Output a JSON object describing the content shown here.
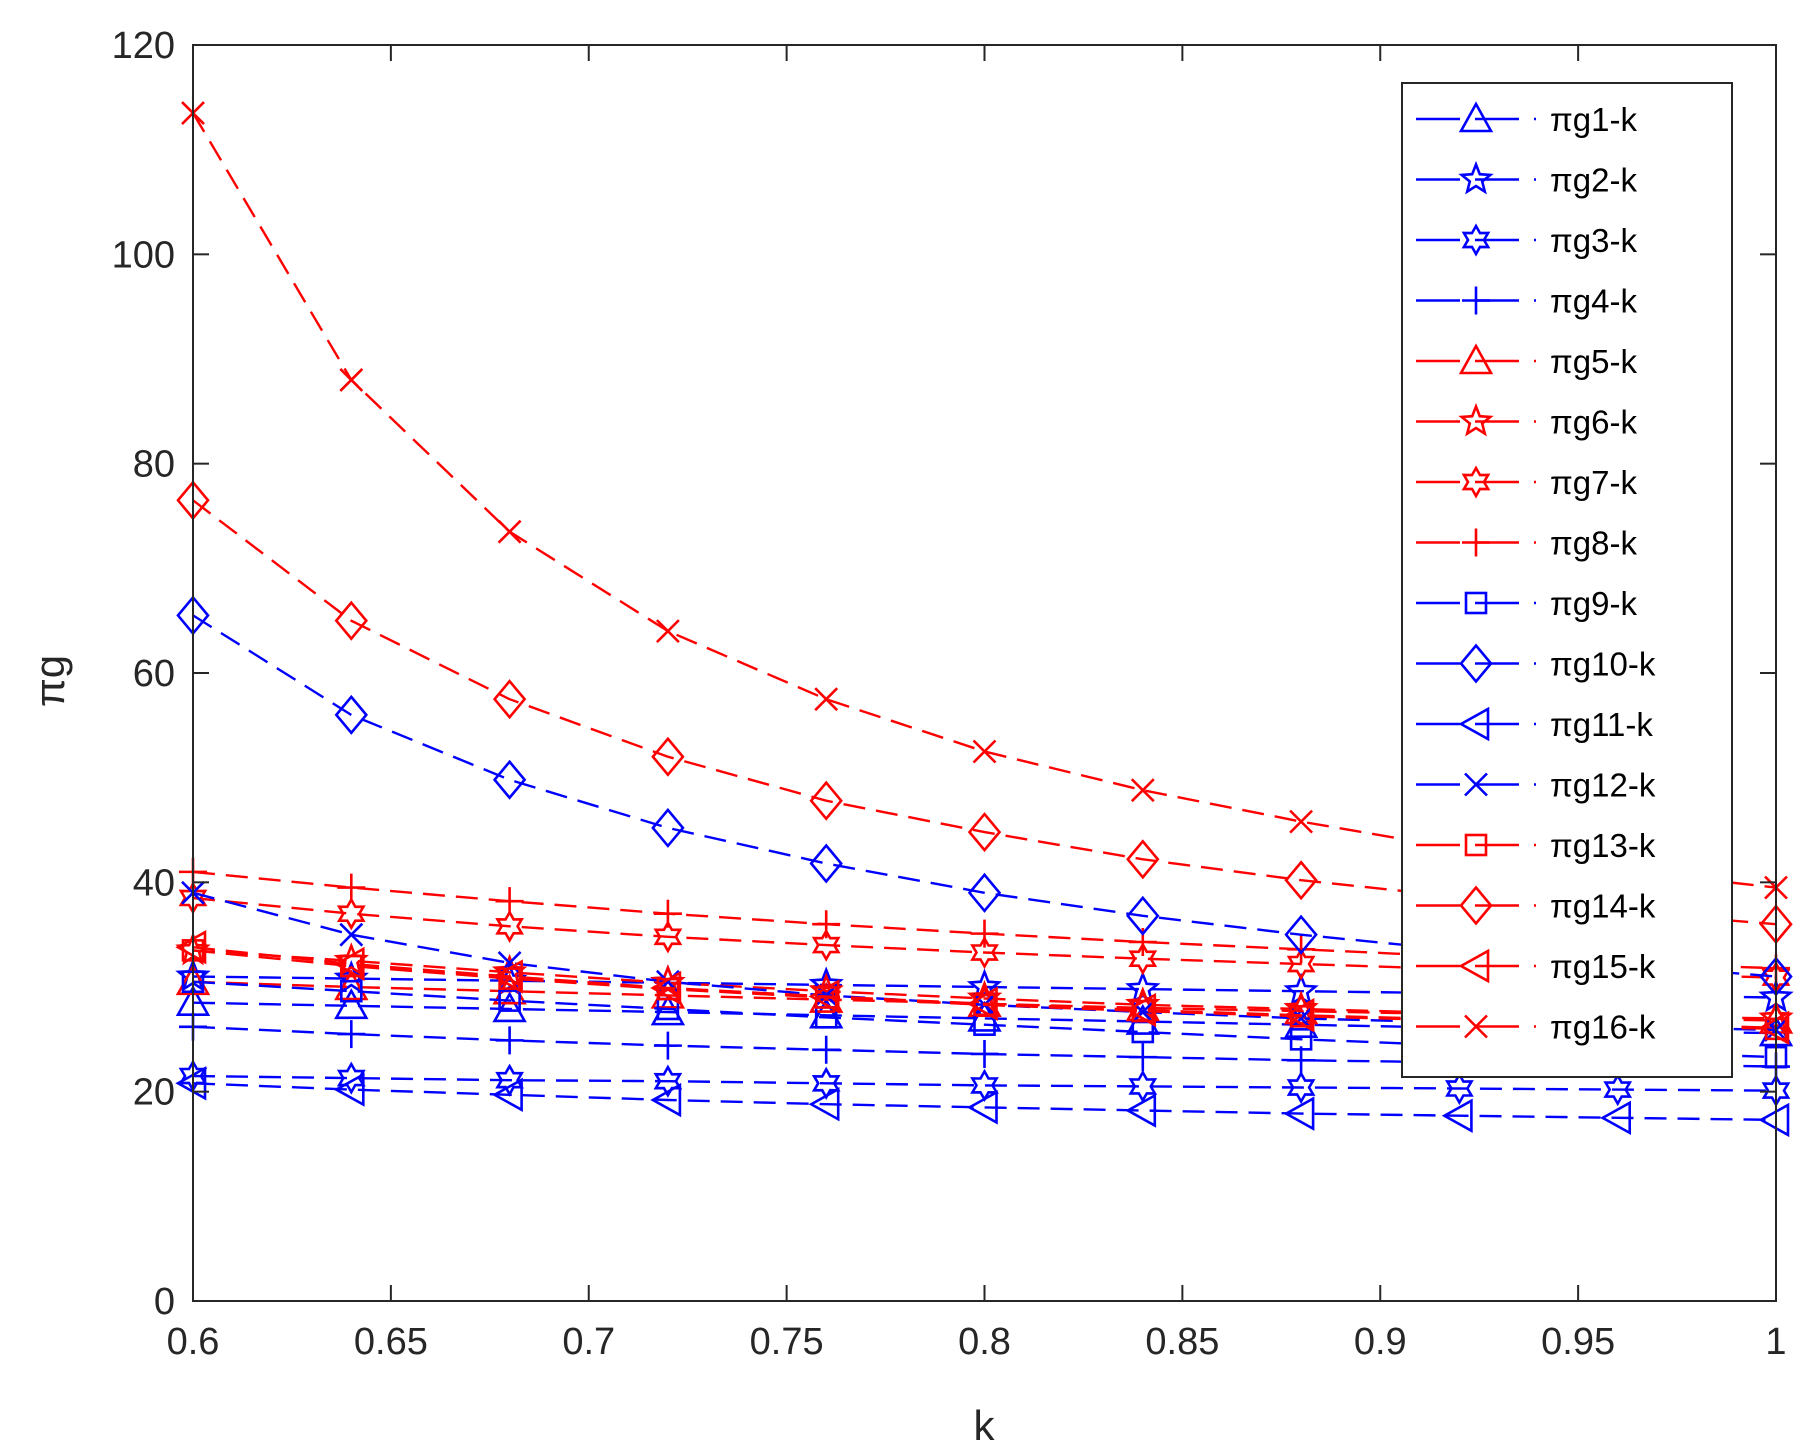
{
  "chart_data": {
    "type": "line",
    "title": "",
    "xlabel": "k",
    "ylabel": "πg",
    "xlim": [
      0.6,
      1
    ],
    "ylim": [
      0,
      120
    ],
    "xticks": [
      "0.6",
      "0.65",
      "0.7",
      "0.75",
      "0.8",
      "0.85",
      "0.9",
      "0.95",
      "1"
    ],
    "yticks": [
      "0",
      "20",
      "40",
      "60",
      "80",
      "100",
      "120"
    ],
    "grid": false,
    "legend_position": "top-right",
    "x": [
      0.6,
      0.64,
      0.68,
      0.72,
      0.76,
      0.8,
      0.84,
      0.88,
      0.92,
      0.96,
      1.0
    ],
    "series": [
      {
        "name": "πg1-k",
        "color": "#0000ff",
        "marker": "triangle-up",
        "values": [
          28.5,
          28.2,
          27.9,
          27.6,
          27.3,
          27.0,
          26.7,
          26.4,
          26.1,
          25.8,
          25.6
        ]
      },
      {
        "name": "πg2-k",
        "color": "#0000ff",
        "marker": "star5",
        "values": [
          31.0,
          30.8,
          30.6,
          30.4,
          30.2,
          30.0,
          29.8,
          29.6,
          29.4,
          29.2,
          29.0
        ]
      },
      {
        "name": "πg3-k",
        "color": "#0000ff",
        "marker": "star6",
        "values": [
          21.5,
          21.3,
          21.1,
          21.0,
          20.8,
          20.6,
          20.5,
          20.4,
          20.3,
          20.2,
          20.1
        ]
      },
      {
        "name": "πg4-k",
        "color": "#0000ff",
        "marker": "plus",
        "values": [
          26.2,
          25.5,
          24.9,
          24.4,
          24.0,
          23.6,
          23.3,
          23.0,
          22.8,
          22.6,
          22.4
        ]
      },
      {
        "name": "πg5-k",
        "color": "#ff0000",
        "marker": "triangle-up",
        "values": [
          30.5,
          30.0,
          29.6,
          29.2,
          28.8,
          28.4,
          28.0,
          27.7,
          27.4,
          27.1,
          26.8
        ]
      },
      {
        "name": "πg6-k",
        "color": "#ff0000",
        "marker": "star5",
        "values": [
          33.5,
          32.5,
          31.4,
          30.4,
          29.6,
          28.9,
          28.3,
          27.9,
          27.5,
          27.2,
          27.0
        ]
      },
      {
        "name": "πg7-k",
        "color": "#ff0000",
        "marker": "star6",
        "values": [
          38.5,
          37.0,
          35.8,
          34.8,
          34.0,
          33.3,
          32.7,
          32.2,
          31.7,
          31.3,
          30.9
        ]
      },
      {
        "name": "πg8-k",
        "color": "#ff0000",
        "marker": "plus",
        "values": [
          41.0,
          39.5,
          38.2,
          37.0,
          36.0,
          35.1,
          34.3,
          33.6,
          32.9,
          32.3,
          31.8
        ]
      },
      {
        "name": "πg9-k",
        "color": "#0000ff",
        "marker": "square",
        "values": [
          30.5,
          29.6,
          28.7,
          27.9,
          27.1,
          26.4,
          25.7,
          25.0,
          24.4,
          23.8,
          23.3
        ]
      },
      {
        "name": "πg10-k",
        "color": "#0000ff",
        "marker": "diamond",
        "values": [
          65.5,
          56.0,
          49.8,
          45.2,
          41.8,
          39.0,
          36.8,
          35.0,
          33.5,
          32.2,
          31.0
        ]
      },
      {
        "name": "πg11-k",
        "color": "#0000ff",
        "marker": "triangle-left",
        "values": [
          20.8,
          20.2,
          19.7,
          19.2,
          18.8,
          18.5,
          18.2,
          17.9,
          17.7,
          17.5,
          17.3
        ]
      },
      {
        "name": "πg12-k",
        "color": "#0000ff",
        "marker": "x",
        "values": [
          39.0,
          35.0,
          32.3,
          30.5,
          29.2,
          28.3,
          27.6,
          27.0,
          26.6,
          26.2,
          25.9
        ]
      },
      {
        "name": "πg13-k",
        "color": "#ff0000",
        "marker": "square",
        "values": [
          33.5,
          32.0,
          30.8,
          29.8,
          29.0,
          28.3,
          27.7,
          27.2,
          26.8,
          26.4,
          26.0
        ]
      },
      {
        "name": "πg14-k",
        "color": "#ff0000",
        "marker": "diamond",
        "values": [
          76.5,
          65.0,
          57.5,
          52.0,
          47.8,
          44.8,
          42.2,
          40.2,
          38.6,
          37.2,
          36.0
        ]
      },
      {
        "name": "πg15-k",
        "color": "#ff0000",
        "marker": "triangle-left",
        "values": [
          33.8,
          32.2,
          31.0,
          29.9,
          29.1,
          28.4,
          27.8,
          27.3,
          26.9,
          26.5,
          26.1
        ]
      },
      {
        "name": "πg16-k",
        "color": "#ff0000",
        "marker": "x",
        "values": [
          113.5,
          88.0,
          73.5,
          64.0,
          57.5,
          52.5,
          48.8,
          45.8,
          43.2,
          41.2,
          39.5
        ]
      }
    ]
  }
}
